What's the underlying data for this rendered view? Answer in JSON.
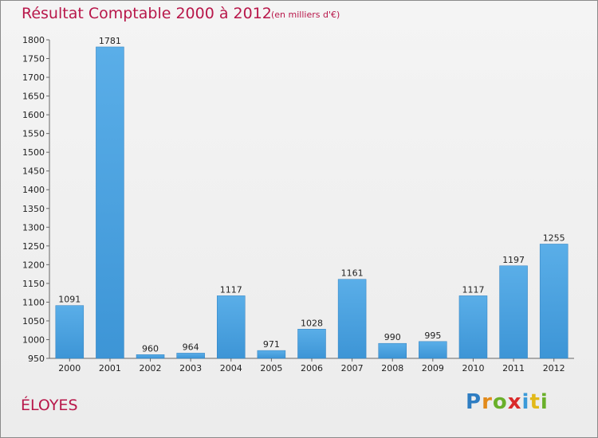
{
  "chart_data": {
    "type": "bar",
    "title": "Résultat Comptable 2000 à 2012",
    "subtitle": "(en milliers d'€)",
    "categories": [
      "2000",
      "2001",
      "2002",
      "2003",
      "2004",
      "2005",
      "2006",
      "2007",
      "2008",
      "2009",
      "2010",
      "2011",
      "2012"
    ],
    "values": [
      1091,
      1781,
      960,
      964,
      1117,
      971,
      1028,
      1161,
      990,
      995,
      1117,
      1197,
      1255
    ],
    "ylim": [
      950,
      1800
    ],
    "yticks": [
      950,
      1000,
      1050,
      1100,
      1150,
      1200,
      1250,
      1300,
      1350,
      1400,
      1450,
      1500,
      1550,
      1600,
      1650,
      1700,
      1750,
      1800
    ],
    "grid": false,
    "bar_color": "#3d95d6",
    "xlabel": "",
    "ylabel": ""
  },
  "place_name": "ÉLOYES",
  "logo": {
    "text": "Proxiti",
    "letters": [
      "P",
      "r",
      "o",
      "x",
      "i",
      "t",
      "i"
    ]
  },
  "colors": {
    "title": "#b8174a",
    "bar": "#3d95d6",
    "axis": "#555555"
  }
}
